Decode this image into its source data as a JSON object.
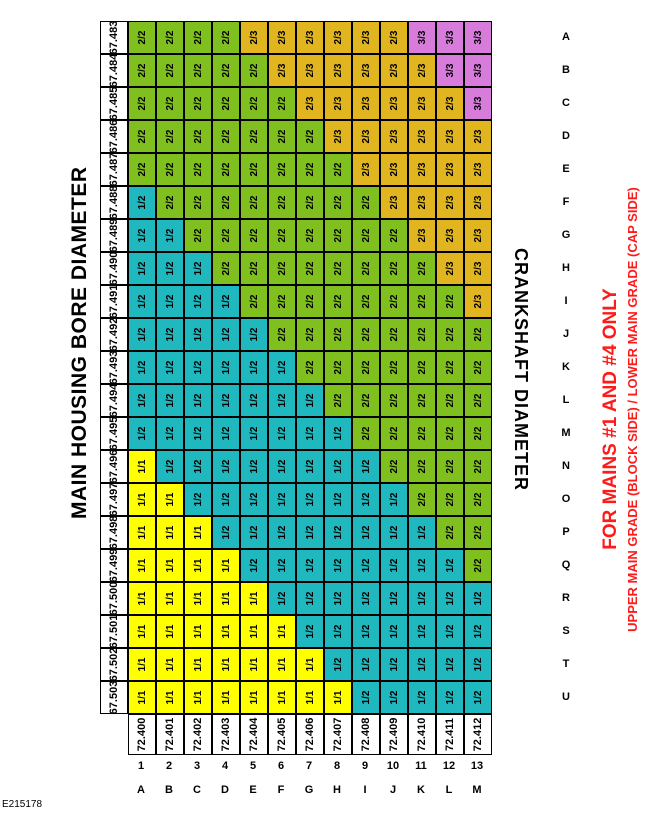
{
  "title": "MAIN HOUSING BORE DIAMETER",
  "row_axis_title": "CRANKSHAFT DIAMETER",
  "note_line1": "FOR MAINS #1 AND #4 ONLY",
  "note_line2": "UPPER MAIN GRADE (BLOCK SIDE) / LOWER MAIN GRADE (CAP SIDE)",
  "figure_id": "E215178",
  "colors": {
    "1/1": "#ffff00",
    "1/2": "#1fb8be",
    "2/2": "#7fbf1e",
    "2/3": "#e0b520",
    "3/3": "#d77cdb"
  },
  "columns": [
    {
      "letter": "A",
      "num": "1",
      "diameter": "72.400"
    },
    {
      "letter": "B",
      "num": "2",
      "diameter": "72.401"
    },
    {
      "letter": "C",
      "num": "3",
      "diameter": "72.402"
    },
    {
      "letter": "D",
      "num": "4",
      "diameter": "72.403"
    },
    {
      "letter": "E",
      "num": "5",
      "diameter": "72.404"
    },
    {
      "letter": "F",
      "num": "6",
      "diameter": "72.405"
    },
    {
      "letter": "G",
      "num": "7",
      "diameter": "72.406"
    },
    {
      "letter": "H",
      "num": "8",
      "diameter": "72.407"
    },
    {
      "letter": "I",
      "num": "9",
      "diameter": "72.408"
    },
    {
      "letter": "J",
      "num": "10",
      "diameter": "72.409"
    },
    {
      "letter": "K",
      "num": "11",
      "diameter": "72.410"
    },
    {
      "letter": "L",
      "num": "12",
      "diameter": "72.411"
    },
    {
      "letter": "M",
      "num": "13",
      "diameter": "72.412"
    }
  ],
  "rows": [
    {
      "letter": "U",
      "diameter": "67.503",
      "cells": [
        "1/1",
        "1/1",
        "1/1",
        "1/1",
        "1/1",
        "1/1",
        "1/1",
        "1/1",
        "1/2",
        "1/2",
        "1/2",
        "1/2",
        "1/2"
      ]
    },
    {
      "letter": "T",
      "diameter": "67.502",
      "cells": [
        "1/1",
        "1/1",
        "1/1",
        "1/1",
        "1/1",
        "1/1",
        "1/1",
        "1/2",
        "1/2",
        "1/2",
        "1/2",
        "1/2",
        "1/2"
      ]
    },
    {
      "letter": "S",
      "diameter": "67.501",
      "cells": [
        "1/1",
        "1/1",
        "1/1",
        "1/1",
        "1/1",
        "1/1",
        "1/2",
        "1/2",
        "1/2",
        "1/2",
        "1/2",
        "1/2",
        "1/2"
      ]
    },
    {
      "letter": "R",
      "diameter": "67.500",
      "cells": [
        "1/1",
        "1/1",
        "1/1",
        "1/1",
        "1/1",
        "1/2",
        "1/2",
        "1/2",
        "1/2",
        "1/2",
        "1/2",
        "1/2",
        "1/2"
      ]
    },
    {
      "letter": "Q",
      "diameter": "67.499",
      "cells": [
        "1/1",
        "1/1",
        "1/1",
        "1/1",
        "1/2",
        "1/2",
        "1/2",
        "1/2",
        "1/2",
        "1/2",
        "1/2",
        "1/2",
        "2/2"
      ]
    },
    {
      "letter": "P",
      "diameter": "67.498",
      "cells": [
        "1/1",
        "1/1",
        "1/1",
        "1/2",
        "1/2",
        "1/2",
        "1/2",
        "1/2",
        "1/2",
        "1/2",
        "1/2",
        "2/2",
        "2/2"
      ]
    },
    {
      "letter": "O",
      "diameter": "67.497",
      "cells": [
        "1/1",
        "1/1",
        "1/2",
        "1/2",
        "1/2",
        "1/2",
        "1/2",
        "1/2",
        "1/2",
        "1/2",
        "2/2",
        "2/2",
        "2/2"
      ]
    },
    {
      "letter": "N",
      "diameter": "67.496",
      "cells": [
        "1/1",
        "1/2",
        "1/2",
        "1/2",
        "1/2",
        "1/2",
        "1/2",
        "1/2",
        "1/2",
        "2/2",
        "2/2",
        "2/2",
        "2/2"
      ]
    },
    {
      "letter": "M",
      "diameter": "67.495",
      "cells": [
        "1/2",
        "1/2",
        "1/2",
        "1/2",
        "1/2",
        "1/2",
        "1/2",
        "1/2",
        "2/2",
        "2/2",
        "2/2",
        "2/2",
        "2/2"
      ]
    },
    {
      "letter": "L",
      "diameter": "67.494",
      "cells": [
        "1/2",
        "1/2",
        "1/2",
        "1/2",
        "1/2",
        "1/2",
        "1/2",
        "2/2",
        "2/2",
        "2/2",
        "2/2",
        "2/2",
        "2/2"
      ]
    },
    {
      "letter": "K",
      "diameter": "67.493",
      "cells": [
        "1/2",
        "1/2",
        "1/2",
        "1/2",
        "1/2",
        "1/2",
        "2/2",
        "2/2",
        "2/2",
        "2/2",
        "2/2",
        "2/2",
        "2/2"
      ]
    },
    {
      "letter": "J",
      "diameter": "67.492",
      "cells": [
        "1/2",
        "1/2",
        "1/2",
        "1/2",
        "1/2",
        "2/2",
        "2/2",
        "2/2",
        "2/2",
        "2/2",
        "2/2",
        "2/2",
        "2/2"
      ]
    },
    {
      "letter": "I",
      "diameter": "67.491",
      "cells": [
        "1/2",
        "1/2",
        "1/2",
        "1/2",
        "2/2",
        "2/2",
        "2/2",
        "2/2",
        "2/2",
        "2/2",
        "2/2",
        "2/2",
        "2/3"
      ]
    },
    {
      "letter": "H",
      "diameter": "67.490",
      "cells": [
        "1/2",
        "1/2",
        "1/2",
        "2/2",
        "2/2",
        "2/2",
        "2/2",
        "2/2",
        "2/2",
        "2/2",
        "2/2",
        "2/3",
        "2/3"
      ]
    },
    {
      "letter": "G",
      "diameter": "67.489",
      "cells": [
        "1/2",
        "1/2",
        "2/2",
        "2/2",
        "2/2",
        "2/2",
        "2/2",
        "2/2",
        "2/2",
        "2/2",
        "2/3",
        "2/3",
        "2/3"
      ]
    },
    {
      "letter": "F",
      "diameter": "67.488",
      "cells": [
        "1/2",
        "2/2",
        "2/2",
        "2/2",
        "2/2",
        "2/2",
        "2/2",
        "2/2",
        "2/2",
        "2/3",
        "2/3",
        "2/3",
        "2/3"
      ]
    },
    {
      "letter": "E",
      "diameter": "67.487",
      "cells": [
        "2/2",
        "2/2",
        "2/2",
        "2/2",
        "2/2",
        "2/2",
        "2/2",
        "2/2",
        "2/3",
        "2/3",
        "2/3",
        "2/3",
        "2/3"
      ]
    },
    {
      "letter": "D",
      "diameter": "67.486",
      "cells": [
        "2/2",
        "2/2",
        "2/2",
        "2/2",
        "2/2",
        "2/2",
        "2/2",
        "2/3",
        "2/3",
        "2/3",
        "2/3",
        "2/3",
        "2/3"
      ]
    },
    {
      "letter": "C",
      "diameter": "67.485",
      "cells": [
        "2/2",
        "2/2",
        "2/2",
        "2/2",
        "2/2",
        "2/2",
        "2/3",
        "2/3",
        "2/3",
        "2/3",
        "2/3",
        "2/3",
        "3/3"
      ]
    },
    {
      "letter": "B",
      "diameter": "67.484",
      "cells": [
        "2/2",
        "2/2",
        "2/2",
        "2/2",
        "2/2",
        "2/3",
        "2/3",
        "2/3",
        "2/3",
        "2/3",
        "2/3",
        "3/3",
        "3/3"
      ]
    },
    {
      "letter": "A",
      "diameter": "67.483",
      "cells": [
        "2/2",
        "2/2",
        "2/2",
        "2/2",
        "2/3",
        "2/3",
        "2/3",
        "2/3",
        "2/3",
        "2/3",
        "3/3",
        "3/3",
        "3/3"
      ]
    }
  ]
}
